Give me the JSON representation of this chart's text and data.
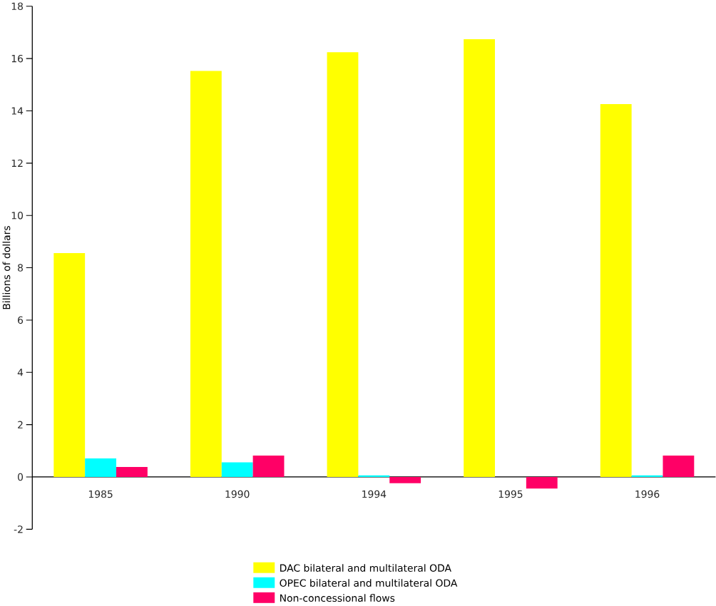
{
  "chart_data": {
    "type": "bar",
    "ylabel": "Billions of dollars",
    "categories": [
      "1985",
      "1990",
      "1994",
      "1995",
      "1996"
    ],
    "series": [
      {
        "name": "DAC bilateral and multilateral ODA",
        "color": "#ffff00",
        "values": [
          8.56,
          15.53,
          16.24,
          16.74,
          14.26
        ]
      },
      {
        "name": "OPEC bilateral and multilateral ODA",
        "color": "#00ffff",
        "values": [
          0.71,
          0.56,
          0.06,
          null,
          0.06
        ]
      },
      {
        "name": "Non-concessional flows",
        "color": "#ff0066",
        "values": [
          0.38,
          0.82,
          -0.24,
          -0.44,
          0.82
        ]
      }
    ],
    "ylim": [
      -2,
      18
    ],
    "yticks": [
      -2,
      0,
      2,
      4,
      6,
      8,
      10,
      12,
      14,
      16,
      18
    ],
    "legend": "bottom"
  }
}
